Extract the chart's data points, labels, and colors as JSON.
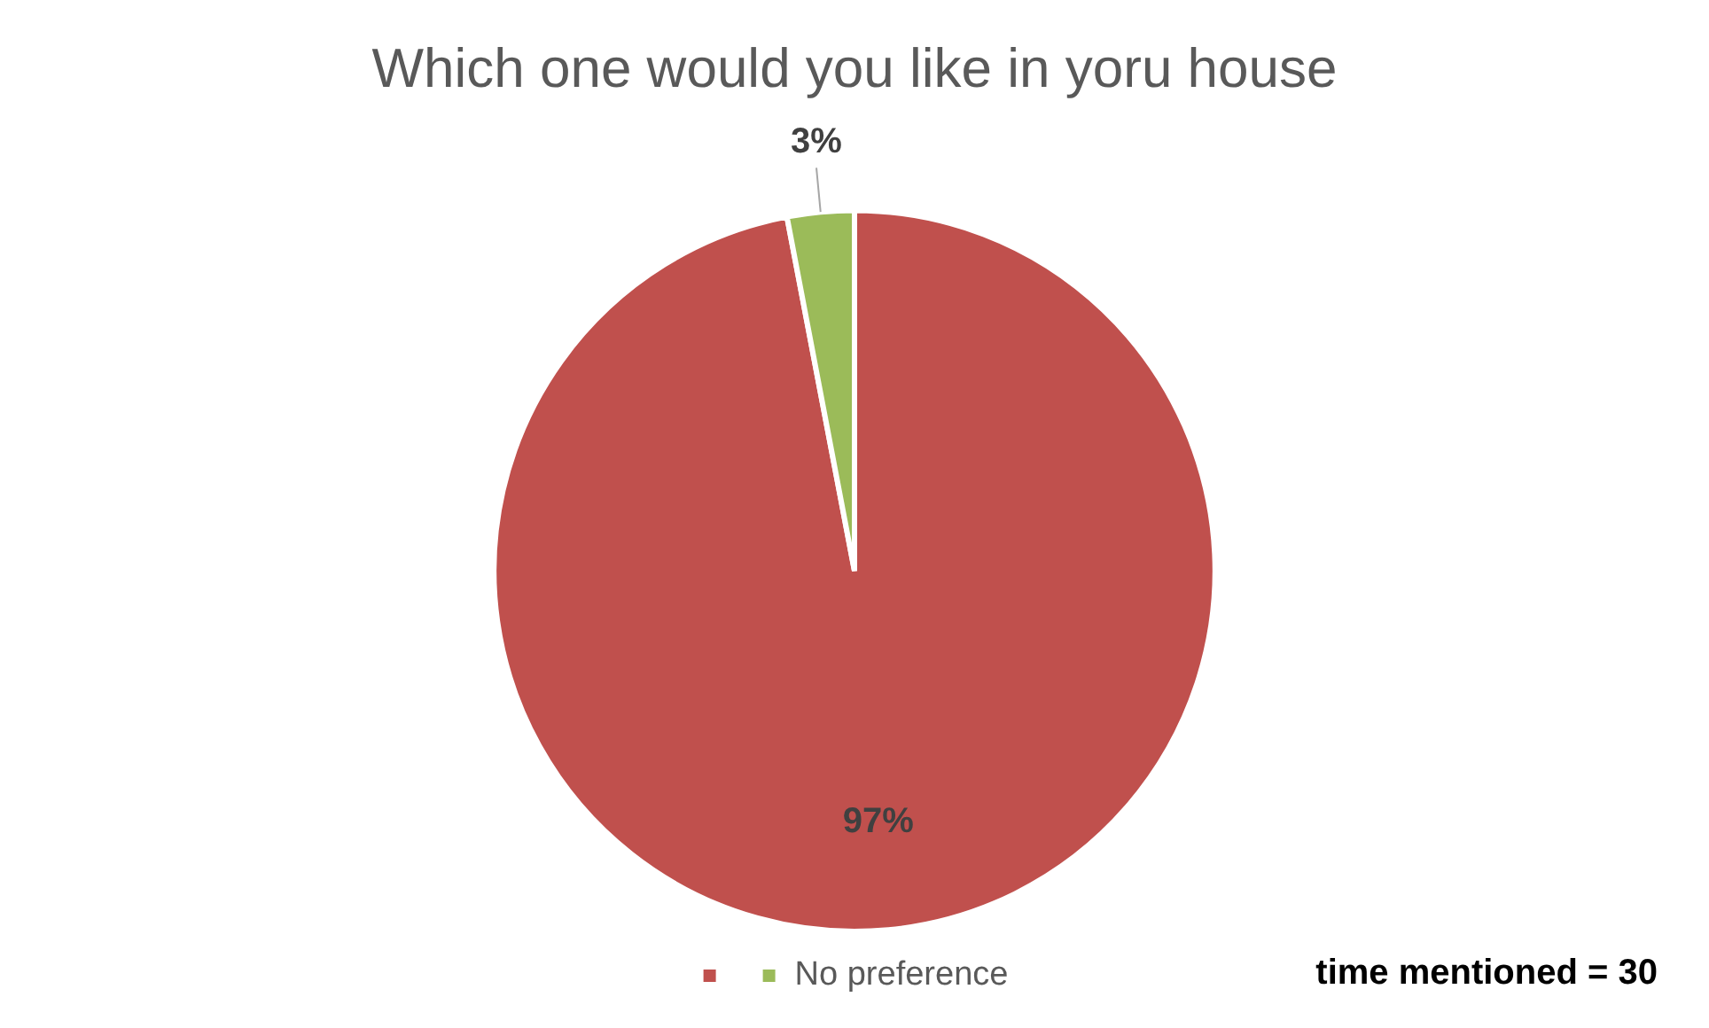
{
  "chart_data": {
    "type": "pie",
    "title": "Which one would you like in yoru house",
    "categories": [
      null,
      "No preference"
    ],
    "values": [
      97,
      3
    ],
    "colors": [
      "#c0504d",
      "#9bbb59"
    ],
    "value_labels": [
      "97%",
      "3%"
    ],
    "legend": "bottom",
    "annotations": [
      "time mentioned = 30"
    ]
  }
}
